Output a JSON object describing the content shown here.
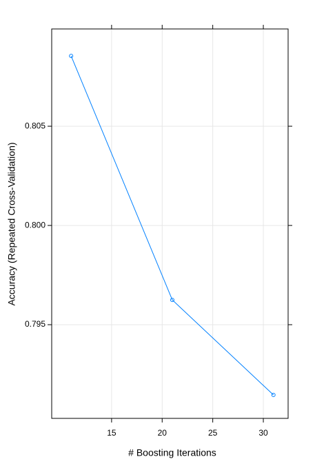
{
  "chart_data": {
    "type": "line",
    "x_label": "# Boosting Iterations",
    "y_label": "Accuracy (Repeated Cross-Validation)",
    "x": [
      11,
      21,
      31
    ],
    "series": [
      {
        "color": "#0080ff",
        "values": [
          0.80854,
          0.79625,
          0.79146
        ]
      }
    ],
    "xlim": [
      9.08,
      32.45
    ],
    "xticks": [
      15,
      20,
      25,
      30
    ],
    "ylim": [
      0.79028,
      0.8099
    ],
    "yticks": [
      0.795,
      {
        "value": 0.8,
        "label": "0.800"
      },
      0.805
    ],
    "grid": true
  }
}
